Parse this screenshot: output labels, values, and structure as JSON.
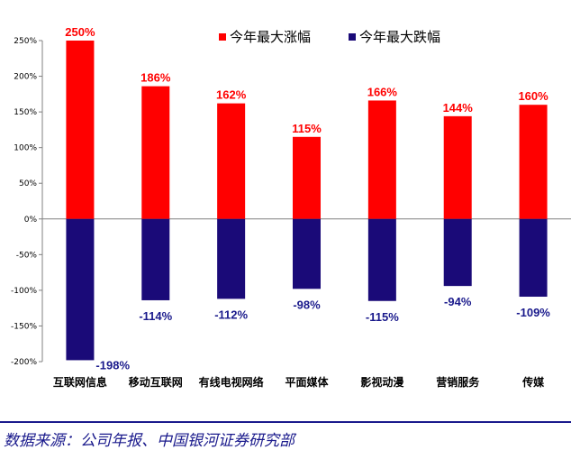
{
  "chart_data": {
    "type": "bar",
    "categories": [
      "互联网信息",
      "移动互联网",
      "有线电视网络",
      "平面媒体",
      "影视动漫",
      "营销服务",
      "传媒"
    ],
    "series": [
      {
        "name": "今年最大涨幅",
        "values": [
          250,
          186,
          162,
          115,
          166,
          144,
          160
        ],
        "color": "#ff0000",
        "labels": [
          "250%",
          "186%",
          "162%",
          "115%",
          "166%",
          "144%",
          "160%"
        ]
      },
      {
        "name": "今年最大跌幅",
        "values": [
          -198,
          -114,
          -112,
          -98,
          -115,
          -94,
          -109
        ],
        "color": "#1a0a78",
        "labels": [
          "-198%",
          "-114%",
          "-112%",
          "-98%",
          "-115%",
          "-94%",
          "-109%"
        ]
      }
    ],
    "ylim": [
      -200,
      250
    ],
    "yticks": [
      -200,
      -150,
      -100,
      -50,
      0,
      50,
      100,
      150,
      200,
      250
    ],
    "ytick_labels": [
      "-200%",
      "-150%",
      "-100%",
      "-50%",
      "0%",
      "50%",
      "100%",
      "150%",
      "200%",
      "250%"
    ],
    "legend_position": "top-right",
    "grid": false,
    "label_colors": {
      "positive": "#ff0000",
      "negative": "#1a1a8c"
    }
  },
  "source": {
    "text": "数据来源：公司年报、中国银河证券研究部"
  }
}
